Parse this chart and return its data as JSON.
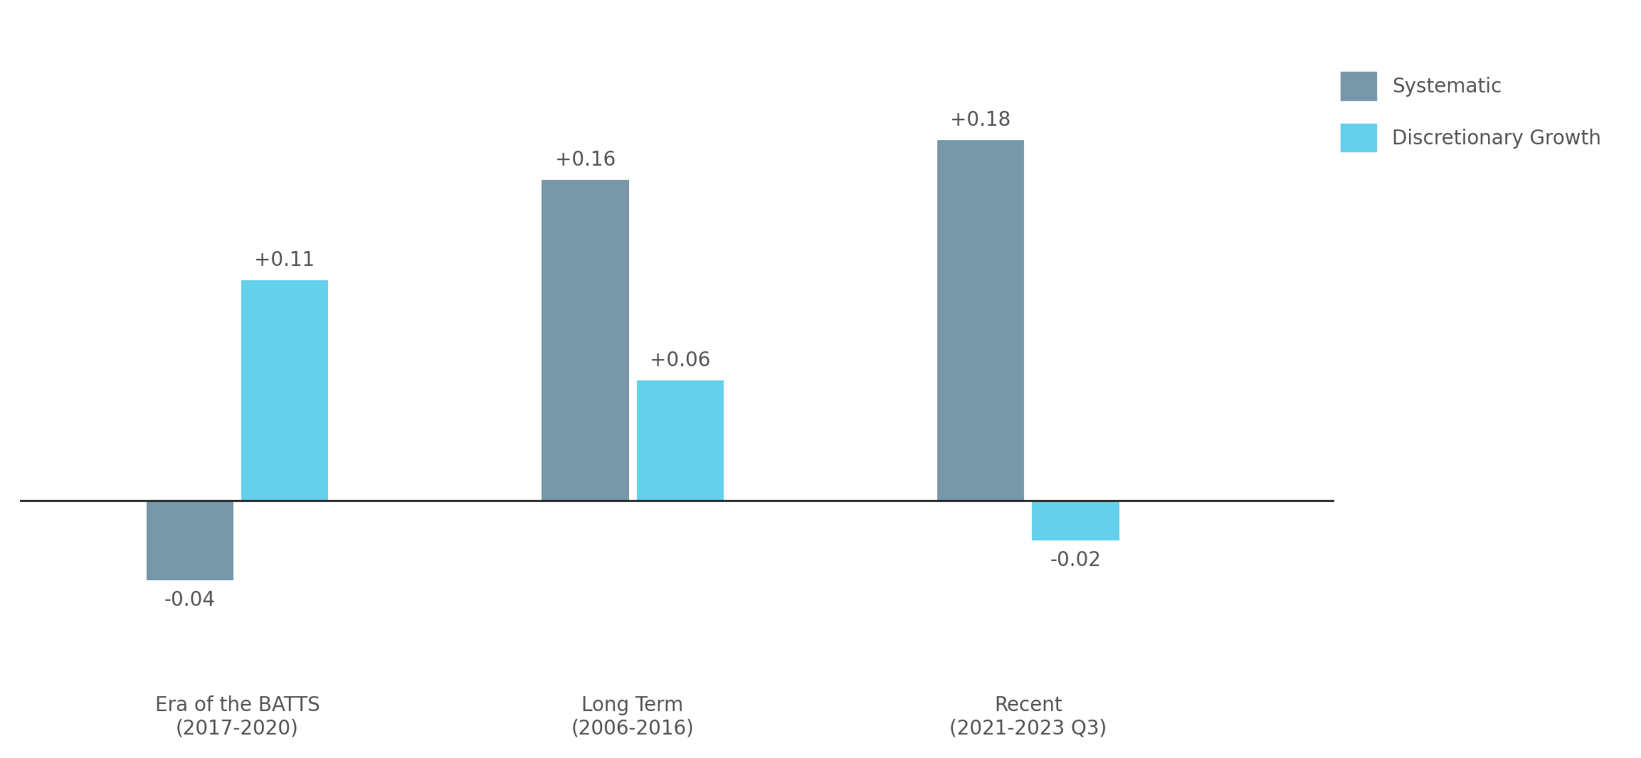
{
  "categories": [
    "Era of the BATTS\n(2017-2020)",
    "Long Term\n(2006-2016)",
    "Recent\n(2021-2023 Q3)"
  ],
  "systematic_values": [
    -0.04,
    0.16,
    0.18
  ],
  "discretionary_values": [
    0.11,
    0.06,
    -0.02
  ],
  "systematic_color": "#7898aa",
  "discretionary_color": "#65d0eb",
  "systematic_label": "Systematic",
  "discretionary_label": "Discretionary Growth",
  "bar_width": 0.22,
  "background_color": "#ffffff",
  "tick_fontsize": 20,
  "legend_fontsize": 20,
  "annotation_fontsize": 20,
  "annotation_color": "#555555",
  "axis_line_color": "#222222",
  "ylim": [
    -0.085,
    0.24
  ]
}
